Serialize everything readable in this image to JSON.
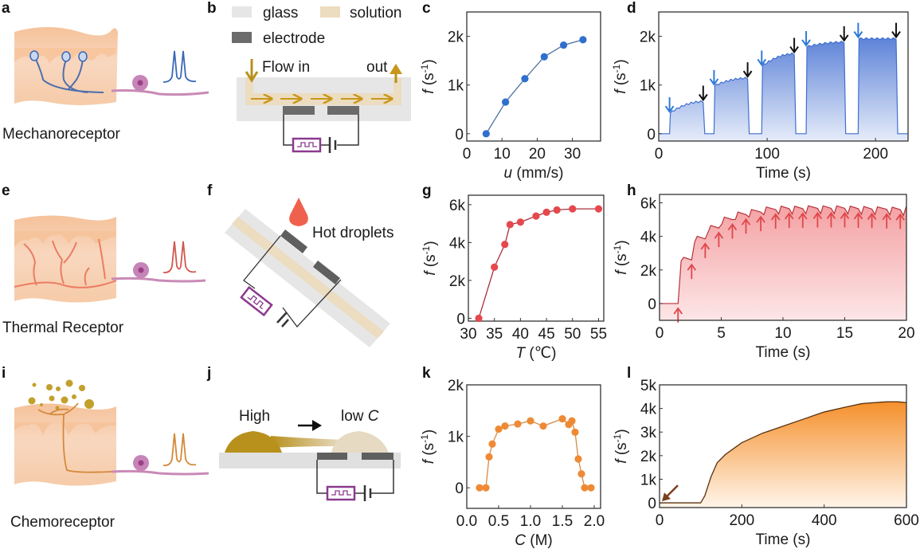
{
  "panels": {
    "a": {
      "letter": "a",
      "caption": "Mechanoreceptor",
      "accent": "#3a68b8"
    },
    "b": {
      "letter": "b",
      "legend": [
        {
          "label": "glass",
          "color": "#e6e6e6"
        },
        {
          "label": "solution",
          "color": "#ecdcc0"
        },
        {
          "label": "electrode",
          "color": "#6b6b6b"
        }
      ],
      "flow_in": "Flow in",
      "flow_out": "out"
    },
    "c": {
      "letter": "c"
    },
    "d": {
      "letter": "d"
    },
    "e": {
      "letter": "e",
      "caption": "Thermal Receptor",
      "accent": "#d2574e"
    },
    "f": {
      "letter": "f",
      "annotation": "Hot droplets"
    },
    "g": {
      "letter": "g"
    },
    "h": {
      "letter": "h"
    },
    "i": {
      "letter": "i",
      "caption": "Chemoreceptor",
      "accent": "#d48a3a"
    },
    "j": {
      "letter": "j",
      "high_label": "High",
      "low_label": "low ",
      "low_label_var": "C"
    },
    "k": {
      "letter": "k"
    },
    "l": {
      "letter": "l"
    }
  },
  "chart_data": [
    {
      "id": "c",
      "type": "scatter",
      "mode": "line+markers",
      "title": "",
      "xlabel_var": "u",
      "xlabel": " (mm/s)",
      "ylabel_var": "f",
      "ylabel": "(s-1)",
      "x": [
        5.5,
        11,
        16.5,
        22,
        27.5,
        33
      ],
      "y": [
        0,
        650,
        1130,
        1580,
        1820,
        1930
      ],
      "xlim": [
        0,
        38
      ],
      "ylim": [
        -150,
        2500
      ],
      "xticks": [
        0,
        10,
        20,
        30
      ],
      "xtick_labels": [
        "0",
        "10",
        "20",
        "30"
      ],
      "yticks": [
        0,
        1000,
        2000
      ],
      "ytick_labels": [
        "0",
        "1k",
        "2k"
      ],
      "color": "#2f6fce",
      "line_color": "#4a6f9e"
    },
    {
      "id": "d",
      "type": "area",
      "xlabel": "Time (s)",
      "ylabel_var": "f",
      "ylabel": "(s-1)",
      "xlim": [
        0,
        230
      ],
      "ylim": [
        -150,
        2500
      ],
      "xticks": [
        0,
        100,
        200
      ],
      "xtick_labels": [
        "0",
        "100",
        "200"
      ],
      "yticks": [
        0,
        1000,
        2000
      ],
      "ytick_labels": [
        "0",
        "1k",
        "2k"
      ],
      "segments": [
        {
          "on": 10,
          "off": 41,
          "start": 420,
          "end": 660
        },
        {
          "on": 51,
          "off": 82,
          "start": 980,
          "end": 1140
        },
        {
          "on": 95,
          "off": 125,
          "start": 1380,
          "end": 1640
        },
        {
          "on": 136,
          "off": 171,
          "start": 1780,
          "end": 1880
        },
        {
          "on": 184,
          "off": 219,
          "start": 1950,
          "end": 1950
        }
      ],
      "blue_arrows_on_s": [
        10,
        51,
        95,
        136,
        184
      ],
      "black_arrows_off_s": [
        41,
        82,
        125,
        171,
        219
      ],
      "color": "#3f6fd0",
      "on_arrow_color": "#2f7ad6",
      "off_arrow_color": "#111111"
    },
    {
      "id": "g",
      "type": "scatter",
      "mode": "line+markers",
      "xlabel_var": "T",
      "xlabel": " (℃)",
      "ylabel_var": "f",
      "ylabel": "(s-1)",
      "x": [
        32,
        35,
        37,
        38,
        40,
        43,
        45,
        47,
        50,
        55
      ],
      "y": [
        0,
        2700,
        3900,
        4950,
        5080,
        5400,
        5600,
        5720,
        5780,
        5780
      ],
      "xlim": [
        30,
        56
      ],
      "ylim": [
        -150,
        6500
      ],
      "xticks": [
        30,
        35,
        40,
        45,
        50,
        55
      ],
      "xtick_labels": [
        "30",
        "35",
        "40",
        "45",
        "50",
        "55"
      ],
      "yticks": [
        0,
        2000,
        4000,
        6000
      ],
      "ytick_labels": [
        "0",
        "2k",
        "4k",
        "6k"
      ],
      "color": "#e5484d",
      "line_color": "#a8323a"
    },
    {
      "id": "h",
      "type": "area",
      "xlabel": "Time (s)",
      "ylabel_var": "f",
      "ylabel": "(s-1)",
      "xlim": [
        0,
        20
      ],
      "ylim": [
        -1000,
        6500
      ],
      "xticks": [
        0,
        5,
        10,
        15,
        20
      ],
      "xtick_labels": [
        "0",
        "5",
        "10",
        "15",
        "20"
      ],
      "yticks": [
        0,
        2000,
        4000,
        6000
      ],
      "ytick_labels": [
        "0",
        "2k",
        "4k",
        "6k"
      ],
      "baseline": 0,
      "drops_s": [
        1.5,
        2.6,
        3.7,
        4.8,
        5.9,
        7.0,
        8.2,
        9.4,
        10.5,
        11.6,
        12.8,
        13.9,
        15.0,
        16.1,
        17.2,
        18.4,
        19.5
      ],
      "peaks": [
        2750,
        4000,
        4650,
        5150,
        5450,
        5600,
        5750,
        5800,
        5800,
        5820,
        5820,
        5820,
        5800,
        5780,
        5760,
        5740,
        5700
      ],
      "color": "#e0474c",
      "arrow_color": "#e0474c"
    },
    {
      "id": "k",
      "type": "scatter",
      "mode": "line+markers",
      "xlabel_var": "C",
      "xlabel": " (M)",
      "ylabel_var": "f",
      "ylabel": "(s-1)",
      "x": [
        0.2,
        0.3,
        0.35,
        0.4,
        0.5,
        0.6,
        0.8,
        1.0,
        1.2,
        1.5,
        1.6,
        1.65,
        1.7,
        1.75,
        1.8,
        1.85,
        1.95
      ],
      "y": [
        0,
        0,
        600,
        850,
        1140,
        1200,
        1240,
        1300,
        1200,
        1340,
        1230,
        1300,
        1080,
        560,
        270,
        0,
        0
      ],
      "xlim": [
        0,
        2.1
      ],
      "ylim": [
        -400,
        2000
      ],
      "xticks": [
        0.0,
        0.5,
        1.0,
        1.5,
        2.0
      ],
      "xtick_labels": [
        "0.0",
        "0.5",
        "1.0",
        "1.5",
        "2.0"
      ],
      "yticks": [
        0,
        1000,
        2000
      ],
      "ytick_labels": [
        "0",
        "1k",
        "2k"
      ],
      "color": "#ee8a35",
      "line_color": "#d68a45"
    },
    {
      "id": "l",
      "type": "area",
      "xlabel": "Time (s)",
      "ylabel_var": "f",
      "ylabel": "(s-1)",
      "xlim": [
        0,
        600
      ],
      "ylim": [
        -200,
        5000
      ],
      "xticks": [
        0,
        200,
        400,
        600
      ],
      "xtick_labels": [
        "0",
        "200",
        "400",
        "600"
      ],
      "yticks": [
        0,
        1000,
        2000,
        3000,
        4000,
        5000
      ],
      "ytick_labels": [
        "0",
        "1k",
        "2k",
        "3k",
        "4k",
        "5k"
      ],
      "x": [
        0,
        100,
        110,
        125,
        140,
        160,
        180,
        200,
        250,
        300,
        350,
        400,
        450,
        490,
        500,
        550,
        580,
        600
      ],
      "y": [
        0,
        0,
        300,
        1100,
        1700,
        2050,
        2300,
        2550,
        2950,
        3250,
        3550,
        3850,
        4050,
        4200,
        4220,
        4280,
        4280,
        4250
      ],
      "arrow_at_s": 0,
      "color": "#f08a24",
      "line_color": "#5a3210",
      "arrow_color": "#7a4020"
    }
  ]
}
